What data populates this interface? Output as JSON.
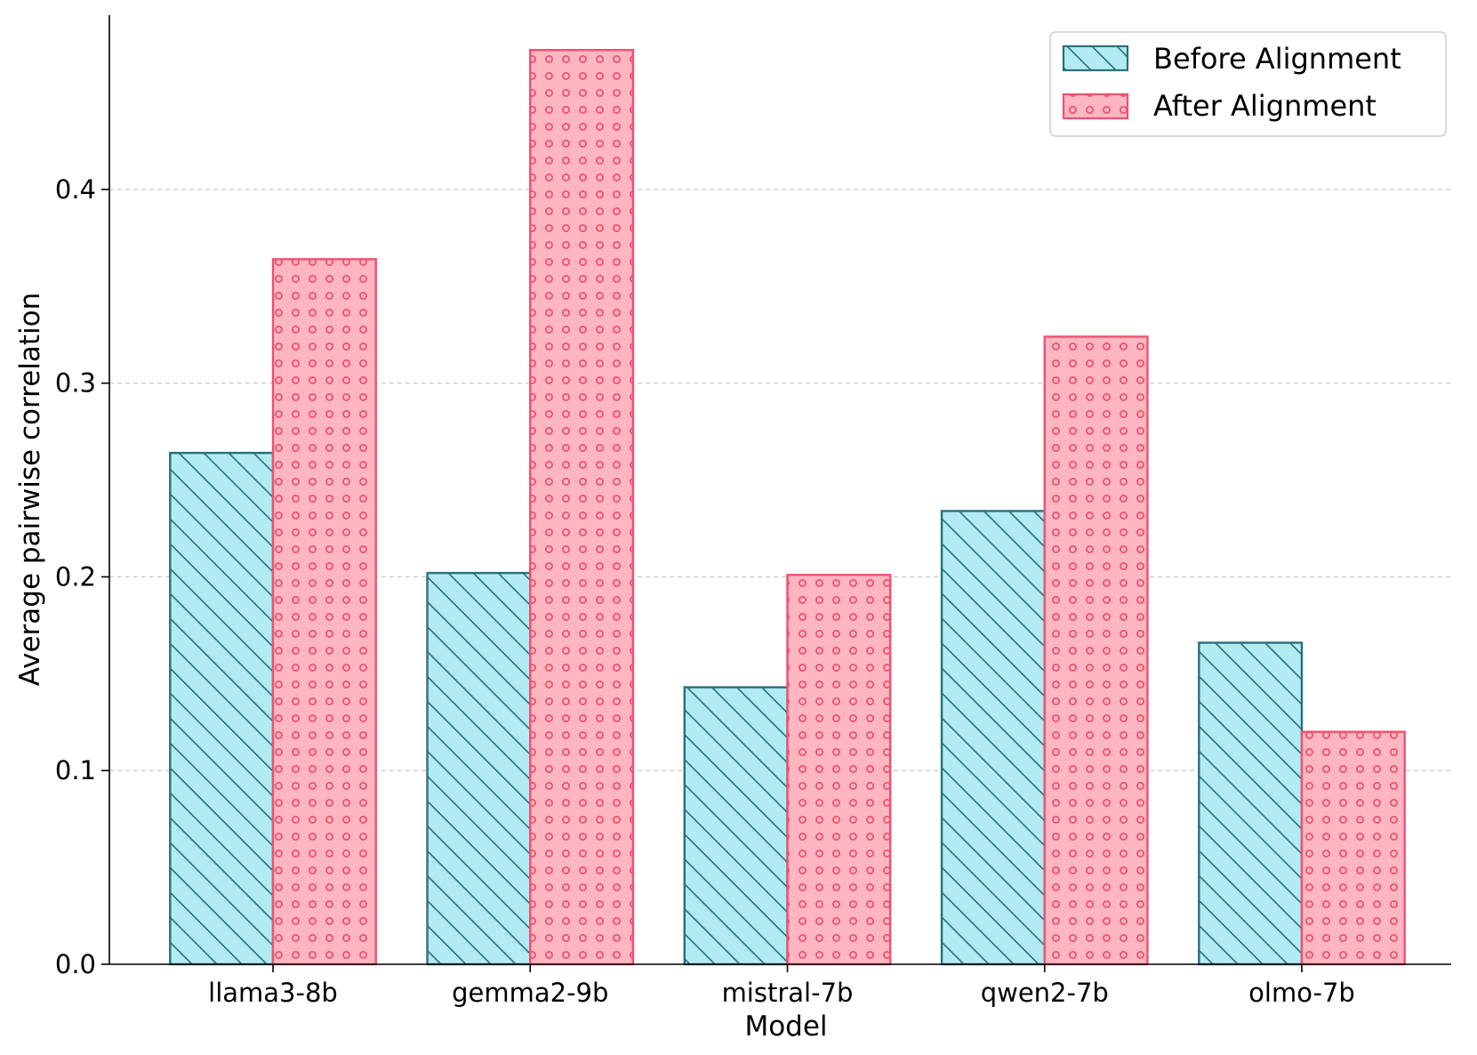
{
  "chart_data": {
    "type": "bar",
    "title": "",
    "xlabel": "Model",
    "ylabel": "Average pairwise correlation",
    "categories": [
      "llama3-8b",
      "gemma2-9b",
      "mistral-7b",
      "qwen2-7b",
      "olmo-7b"
    ],
    "series": [
      {
        "name": "Before Alignment",
        "values": [
          0.264,
          0.202,
          0.143,
          0.234,
          0.166
        ],
        "fill": "#b2ebf2",
        "stroke": "#2a6f7a",
        "hatch": "diagonal"
      },
      {
        "name": "After Alignment",
        "values": [
          0.364,
          0.472,
          0.201,
          0.324,
          0.12
        ],
        "fill": "#ffb6c1",
        "stroke": "#f0506e",
        "hatch": "circles"
      }
    ],
    "ylim": [
      0,
      0.49
    ],
    "yticks": [
      0.0,
      0.1,
      0.2,
      0.3,
      0.4
    ],
    "ytick_labels": [
      "0.0",
      "0.1",
      "0.2",
      "0.3",
      "0.4"
    ],
    "grid": "y-dashed",
    "legend_position": "top-right"
  }
}
